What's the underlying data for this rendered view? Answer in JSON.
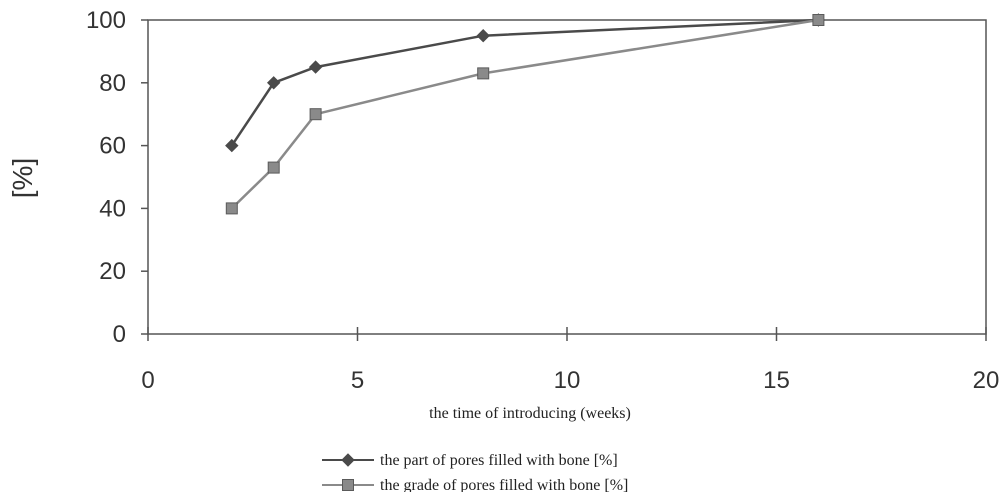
{
  "chart_data": {
    "type": "line",
    "xlabel": "the time of introducing (weeks)",
    "ylabel": "[%]",
    "xlim": [
      0,
      20
    ],
    "ylim": [
      0,
      100
    ],
    "x_ticks": [
      "0",
      "5",
      "10",
      "15",
      "20"
    ],
    "y_ticks": [
      "0",
      "20",
      "40",
      "60",
      "80",
      "100"
    ],
    "grid": false,
    "legend_position": "bottom-center",
    "series": [
      {
        "name": "the part of pores filled with bone [%]",
        "marker": "diamond",
        "color": "#4a4a4a",
        "x": [
          2,
          3,
          4,
          8,
          16
        ],
        "y": [
          60,
          80,
          85,
          95,
          100
        ]
      },
      {
        "name": "the grade of pores filled with bone [%]",
        "marker": "square",
        "color": "#8a8a8a",
        "x": [
          2,
          3,
          4,
          8,
          16
        ],
        "y": [
          40,
          53,
          70,
          83,
          100
        ]
      }
    ]
  }
}
